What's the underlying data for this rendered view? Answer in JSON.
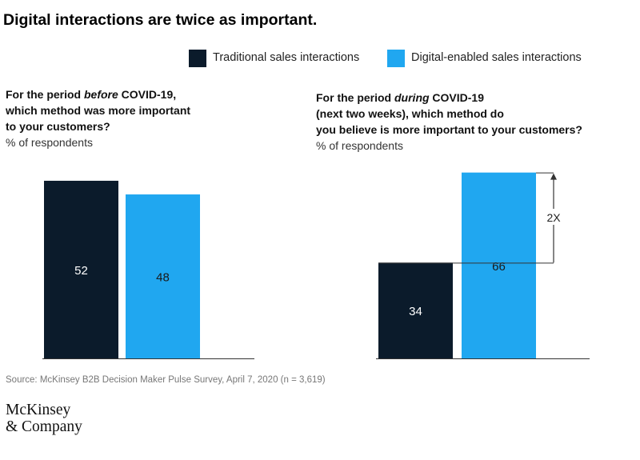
{
  "title": "Digital interactions are twice as important.",
  "colors": {
    "traditional": "#0b1b2b",
    "digital": "#20a7f0",
    "axis": "#333333",
    "bar_label_dark": "#ffffff",
    "bar_label_light": "#1a1a1a"
  },
  "legend": [
    {
      "label": "Traditional sales interactions",
      "color": "#0b1b2b"
    },
    {
      "label": "Digital-enabled sales interactions",
      "color": "#20a7f0"
    }
  ],
  "panels": [
    {
      "q_line1_pre": "For the period ",
      "q_line1_em": "before",
      "q_line1_post": " COVID-19,",
      "q_line2": "which method was more important",
      "q_line3": "to your customers?",
      "unit": "% of respondents"
    },
    {
      "q_line1_pre": "For the period ",
      "q_line1_em": "during",
      "q_line1_post": " COVID-19",
      "q_line2": "(next two weeks), which method do",
      "q_line3": "you believe is more important to your customers?",
      "unit": "% of respondents"
    }
  ],
  "chart_data": [
    {
      "type": "bar",
      "categories": [
        "Traditional sales interactions",
        "Digital-enabled sales interactions"
      ],
      "values": [
        52,
        48
      ],
      "ylim": [
        0,
        70
      ],
      "grid": false
    },
    {
      "type": "bar",
      "categories": [
        "Traditional sales interactions",
        "Digital-enabled sales interactions"
      ],
      "values": [
        34,
        66
      ],
      "ylim": [
        0,
        70
      ],
      "grid": false,
      "annotation": "2X"
    }
  ],
  "source": "Source: McKinsey B2B Decision Maker Pulse Survey, April 7, 2020 (n = 3,619)",
  "logo": {
    "line1": "McKinsey",
    "line2": "& Company"
  }
}
